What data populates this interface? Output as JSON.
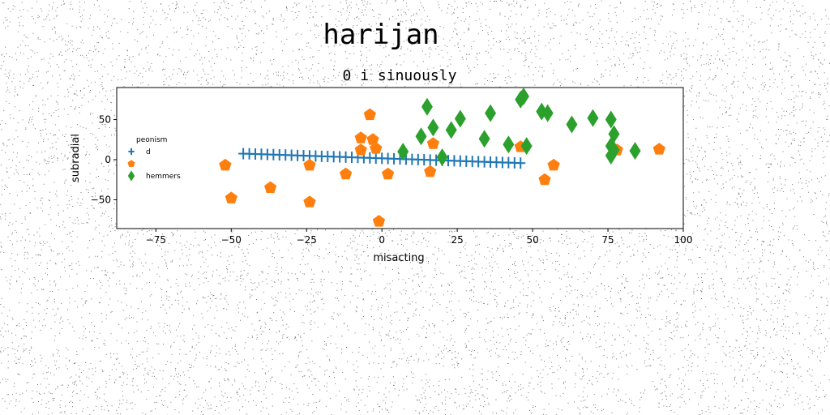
{
  "chart_data": {
    "type": "scatter",
    "title": "harijan",
    "subtitle": "0 i sinuously",
    "xlabel": "misacting",
    "ylabel": "subradial",
    "xlim": [
      -88,
      100
    ],
    "ylim": [
      -86,
      90
    ],
    "x_ticks": [
      -75,
      -50,
      -25,
      0,
      25,
      50,
      75,
      100
    ],
    "y_ticks": [
      -50,
      0,
      50
    ],
    "x_tick_labels": [
      "−75",
      "−50",
      "−25",
      "0",
      "25",
      "50",
      "75",
      "100"
    ],
    "y_tick_labels": [
      "−50",
      "0",
      "50"
    ],
    "grid": false,
    "legend": {
      "position": "center-left",
      "title": "peonism",
      "entries": [
        "d",
        "",
        "hemmers"
      ]
    },
    "series": [
      {
        "name": "d",
        "marker": "plus",
        "color": "#1f77b4",
        "x": [
          -46,
          -44,
          -42,
          -40,
          -38,
          -36,
          -34,
          -32,
          -30,
          -28,
          -26,
          -24,
          -22,
          -20,
          -18,
          -16,
          -14,
          -12,
          -10,
          -8,
          -6,
          -4,
          -2,
          0,
          2,
          4,
          6,
          8,
          10,
          12,
          14,
          16,
          18,
          20,
          22,
          24,
          26,
          28,
          30,
          32,
          34,
          36,
          38,
          40,
          42,
          44,
          46
        ],
        "y": [
          7.5,
          7.3,
          7.0,
          6.8,
          6.5,
          6.3,
          6.0,
          5.8,
          5.5,
          5.2,
          5.0,
          4.7,
          4.5,
          4.2,
          4.0,
          3.7,
          3.5,
          3.2,
          2.9,
          2.7,
          2.4,
          2.2,
          1.9,
          1.7,
          1.4,
          1.1,
          0.9,
          0.6,
          0.4,
          0.1,
          -0.1,
          -0.4,
          -0.7,
          -0.9,
          -1.2,
          -1.4,
          -1.7,
          -1.9,
          -2.2,
          -2.5,
          -2.7,
          -3.0,
          -3.2,
          -3.5,
          -3.7,
          -4.0,
          -4.3
        ]
      },
      {
        "name": "",
        "marker": "pentagon",
        "color": "#ff7f0e",
        "x": [
          -52,
          -50,
          -37,
          -24,
          -24,
          -12,
          -7,
          -7,
          -4,
          -3,
          -2,
          -1,
          2,
          16,
          17,
          46,
          54,
          57,
          78,
          92
        ],
        "y": [
          -7,
          -48,
          -35,
          -53,
          -7,
          -18,
          27,
          12,
          56,
          25,
          14,
          -77,
          -18,
          -15,
          20,
          16,
          -25,
          -7,
          12,
          13
        ]
      },
      {
        "name": "hemmers",
        "marker": "diamond",
        "color": "#2ca02c",
        "x": [
          7,
          13,
          15,
          17,
          20,
          23,
          26,
          34,
          36,
          42,
          46,
          47,
          48,
          53,
          55,
          63,
          70,
          76,
          76,
          76,
          77,
          77,
          84
        ],
        "y": [
          10,
          29,
          66,
          40,
          3,
          37,
          51,
          26,
          58,
          19,
          75,
          79,
          17,
          60,
          58,
          44,
          52,
          5,
          17,
          50,
          32,
          12,
          11
        ]
      }
    ]
  }
}
